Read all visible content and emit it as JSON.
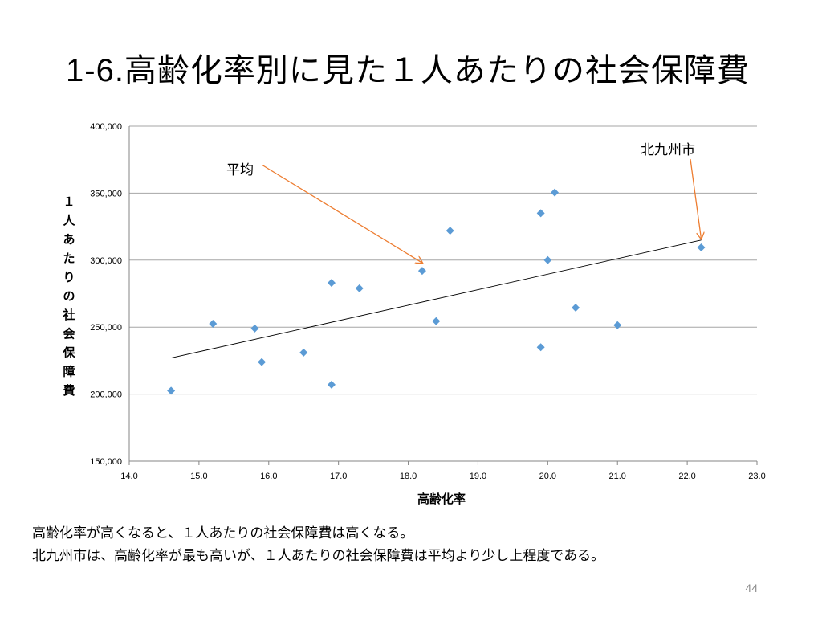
{
  "slide": {
    "title_number": "1-6.",
    "title_text": "高齢化率別に見た１人あたりの社会保障費",
    "caption_line1": "高齢化率が高くなると、１人あたりの社会保障費は高くなる。",
    "caption_line2": "北九州市は、高齢化率が最も高いが、１人あたりの社会保障費は平均より少し上程度である。",
    "page_number": "44"
  },
  "chart_data": {
    "type": "scatter",
    "title": "",
    "xlabel": "高齢化率",
    "ylabel": "１人あたりの社会保障費",
    "xlim": [
      14.0,
      23.0
    ],
    "ylim": [
      150000,
      400000
    ],
    "x_ticks": [
      "14.0",
      "15.0",
      "16.0",
      "17.0",
      "18.0",
      "19.0",
      "20.0",
      "21.0",
      "22.0",
      "23.0"
    ],
    "y_ticks": [
      "150,000",
      "200,000",
      "250,000",
      "300,000",
      "350,000",
      "400,000"
    ],
    "grid": "horizontal",
    "marker_color": "#5b9bd5",
    "points": [
      {
        "x": 14.6,
        "y": 202500
      },
      {
        "x": 15.2,
        "y": 252500
      },
      {
        "x": 15.8,
        "y": 249000
      },
      {
        "x": 15.9,
        "y": 224000
      },
      {
        "x": 16.5,
        "y": 231000
      },
      {
        "x": 16.9,
        "y": 283000
      },
      {
        "x": 16.9,
        "y": 207000
      },
      {
        "x": 17.3,
        "y": 279000
      },
      {
        "x": 18.2,
        "y": 292000
      },
      {
        "x": 18.4,
        "y": 254500
      },
      {
        "x": 18.6,
        "y": 322000
      },
      {
        "x": 19.9,
        "y": 335000
      },
      {
        "x": 19.9,
        "y": 235000
      },
      {
        "x": 20.0,
        "y": 300000
      },
      {
        "x": 20.1,
        "y": 350500
      },
      {
        "x": 20.4,
        "y": 264500
      },
      {
        "x": 21.0,
        "y": 251500
      },
      {
        "x": 22.2,
        "y": 309500
      }
    ],
    "trendline": {
      "x": [
        14.6,
        22.2
      ],
      "y": [
        227000,
        315000
      ],
      "color": "#000000"
    },
    "annotations": [
      {
        "text": "平均",
        "target": {
          "x": 18.2,
          "y": 298000
        },
        "color": "#ed7d31"
      },
      {
        "text": "北九州市",
        "target": {
          "x": 22.2,
          "y": 316000
        },
        "color": "#ed7d31"
      }
    ]
  }
}
